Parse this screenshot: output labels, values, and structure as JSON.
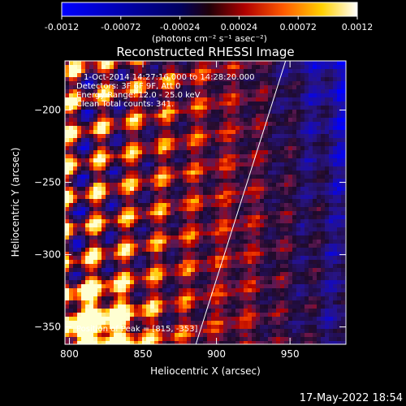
{
  "chart_data": {
    "type": "heatmap",
    "title": "Reconstructed RHESSI Image",
    "xlabel": "Heliocentric X (arcsec)",
    "ylabel": "Heliocentric Y (arcsec)",
    "x_ticks": [
      800,
      850,
      900,
      950
    ],
    "y_ticks": [
      -200,
      -250,
      -300,
      -350
    ],
    "xlim": [
      797,
      988
    ],
    "ylim": [
      -362,
      -166
    ],
    "colorbar": {
      "ticks": [
        "-0.0012",
        "-0.00072",
        "-0.00024",
        "0.00024",
        "0.00072",
        "0.0012"
      ],
      "units_label": "(photons cm⁻² s⁻¹ asec⁻²)",
      "range": [
        -0.0012,
        0.0012
      ],
      "colors": [
        "#0000ff",
        "#000000",
        "#ff0000",
        "#ffff00",
        "#ffffff"
      ]
    },
    "annotations": [
      "1-Oct-2014 14:27:16.000 to 14:28:20.000",
      "Detectors: 3F 6F 9F, Att 0",
      "Energy Range: 12.0 - 25.0 keV",
      "Clean    Total counts: 341."
    ],
    "peak_label": "Position of Peak = [815, -353]",
    "peak": [
      815,
      -353
    ],
    "limb_line": [
      [
        886,
        -362
      ],
      [
        947,
        -166
      ]
    ]
  },
  "footer": {
    "date": "17-May-2022 18:54"
  }
}
